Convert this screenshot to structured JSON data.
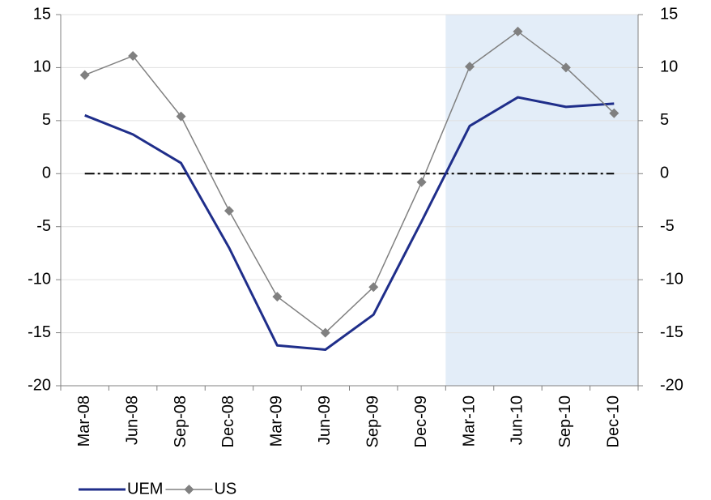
{
  "chart_data": {
    "type": "line",
    "categories": [
      "Mar-08",
      "Jun-08",
      "Sep-08",
      "Dec-08",
      "Mar-09",
      "Jun-09",
      "Sep-09",
      "Dec-09",
      "Mar-10",
      "Jun-10",
      "Sep-10",
      "Dec-10"
    ],
    "series": [
      {
        "name": "UEM",
        "color": "#1f2e8a",
        "marker": "none",
        "values": [
          5.5,
          3.7,
          1.0,
          -7.0,
          -16.2,
          -16.6,
          -13.3,
          -4.5,
          4.5,
          7.2,
          6.3,
          6.6
        ]
      },
      {
        "name": "US",
        "color": "#808080",
        "marker": "diamond",
        "values": [
          9.3,
          11.1,
          5.4,
          -3.5,
          -11.6,
          -15.0,
          -10.7,
          -0.8,
          10.1,
          13.4,
          10.0,
          5.7
        ]
      }
    ],
    "ylim": [
      -20,
      15
    ],
    "yticks": [
      -20,
      -15,
      -10,
      -5,
      0,
      5,
      10,
      15
    ],
    "y2lim": [
      -20,
      15
    ],
    "y2ticks": [
      -20,
      -15,
      -10,
      -5,
      0,
      5,
      10,
      15
    ],
    "grid": true,
    "reference_line": 0,
    "shaded_start_category": 8,
    "shade_color": "#e3edf8",
    "legend": "bottom-left"
  }
}
